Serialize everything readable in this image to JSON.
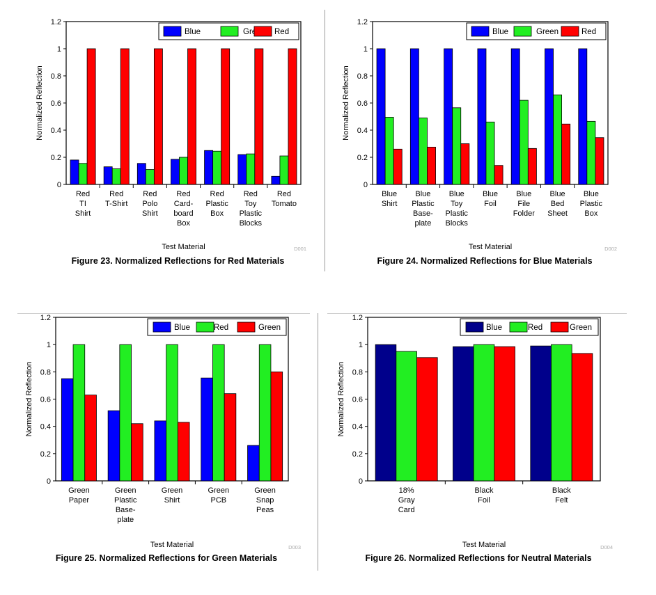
{
  "page": {
    "colors": {
      "blue": "#0000ff",
      "navy": "#00008b",
      "green": "#22ee22",
      "red": "#ff0000",
      "frame": "#000000"
    }
  },
  "chart_data": [
    {
      "type": "bar",
      "title": "Figure 23. Normalized Reflections for Red Materials",
      "xlabel": "Test Material",
      "ylabel": "Normalized Reflection",
      "code": "D001",
      "ylim": [
        0,
        1.2
      ],
      "yticks": [
        "0",
        "0.2",
        "0.4",
        "0.6",
        "0.8",
        "1",
        "1.2"
      ],
      "legend_position": "top-right",
      "categories": [
        [
          "Red",
          "TI",
          "Shirt"
        ],
        [
          "Red",
          "T-Shirt"
        ],
        [
          "Red",
          "Polo",
          "Shirt"
        ],
        [
          "Red",
          "Card-",
          "board",
          "Box"
        ],
        [
          "Red",
          "Plastic",
          "Box"
        ],
        [
          "Red",
          "Toy",
          "Plastic",
          "Blocks"
        ],
        [
          "Red",
          "Tomato"
        ]
      ],
      "series": [
        {
          "name": "Blue",
          "color": "#0000ff",
          "values": [
            0.18,
            0.13,
            0.155,
            0.185,
            0.25,
            0.22,
            0.06
          ]
        },
        {
          "name": "Green",
          "color": "#22ee22",
          "values": [
            0.155,
            0.115,
            0.11,
            0.2,
            0.245,
            0.225,
            0.21
          ]
        },
        {
          "name": "Red",
          "color": "#ff0000",
          "values": [
            1,
            1,
            1,
            1,
            1,
            1,
            1
          ]
        }
      ]
    },
    {
      "type": "bar",
      "title": "Figure 24. Normalized Reflections for Blue Materials",
      "xlabel": "Test Material",
      "ylabel": "Normalized Reflection",
      "code": "D002",
      "ylim": [
        0,
        1.2
      ],
      "yticks": [
        "0",
        "0.2",
        "0.4",
        "0.6",
        "0.8",
        "1",
        "1.2"
      ],
      "legend_position": "top-right",
      "categories": [
        [
          "Blue",
          "Shirt"
        ],
        [
          "Blue",
          "Plastic",
          "Base-",
          "plate"
        ],
        [
          "Blue",
          "Toy",
          "Plastic",
          "Blocks"
        ],
        [
          "Blue",
          "Foil"
        ],
        [
          "Blue",
          "File",
          "Folder"
        ],
        [
          "Blue",
          "Bed",
          "Sheet"
        ],
        [
          "Blue",
          "Plastic",
          "Box"
        ]
      ],
      "series": [
        {
          "name": "Blue",
          "color": "#0000ff",
          "values": [
            1,
            1,
            1,
            1,
            1,
            1,
            1
          ]
        },
        {
          "name": "Green",
          "color": "#22ee22",
          "values": [
            0.495,
            0.49,
            0.565,
            0.46,
            0.62,
            0.66,
            0.465
          ]
        },
        {
          "name": "Red",
          "color": "#ff0000",
          "values": [
            0.26,
            0.275,
            0.3,
            0.14,
            0.265,
            0.445,
            0.345
          ]
        }
      ]
    },
    {
      "type": "bar",
      "title": "Figure 25. Normalized Reflections for Green Materials",
      "xlabel": "Test Material",
      "ylabel": "Normalized Reflection",
      "code": "D003",
      "ylim": [
        0,
        1.2
      ],
      "yticks": [
        "0",
        "0.2",
        "0.4",
        "0.6",
        "0.8",
        "1",
        "1.2"
      ],
      "legend_position": "top-right",
      "categories": [
        [
          "Green",
          "Paper"
        ],
        [
          "Green",
          "Plastic",
          "Base-",
          "plate"
        ],
        [
          "Green",
          "Shirt"
        ],
        [
          "Green",
          "PCB"
        ],
        [
          "Green",
          "Snap",
          "Peas"
        ]
      ],
      "series": [
        {
          "name": "Blue",
          "color": "#0000ff",
          "values": [
            0.75,
            0.515,
            0.44,
            0.755,
            0.26
          ]
        },
        {
          "name": "Red",
          "color": "#22ee22",
          "values": [
            1,
            1,
            1,
            1,
            1
          ]
        },
        {
          "name": "Green",
          "color": "#ff0000",
          "values": [
            0.63,
            0.42,
            0.43,
            0.64,
            0.8
          ]
        }
      ]
    },
    {
      "type": "bar",
      "title": "Figure 26. Normalized Reflections for Neutral Materials",
      "xlabel": "Test Material",
      "ylabel": "Normalized Reflection",
      "code": "D004",
      "ylim": [
        0,
        1.2
      ],
      "yticks": [
        "0",
        "0.2",
        "0.4",
        "0.6",
        "0.8",
        "1",
        "1.2"
      ],
      "legend_position": "top-right",
      "categories": [
        [
          "18%",
          "Gray",
          "Card"
        ],
        [
          "Black",
          "Foil"
        ],
        [
          "Black",
          "Felt"
        ]
      ],
      "series": [
        {
          "name": "Blue",
          "color": "#00008b",
          "values": [
            1,
            0.985,
            0.99
          ]
        },
        {
          "name": "Red",
          "color": "#22ee22",
          "values": [
            0.95,
            1,
            1
          ]
        },
        {
          "name": "Green",
          "color": "#ff0000",
          "values": [
            0.905,
            0.985,
            0.935
          ]
        }
      ]
    }
  ]
}
